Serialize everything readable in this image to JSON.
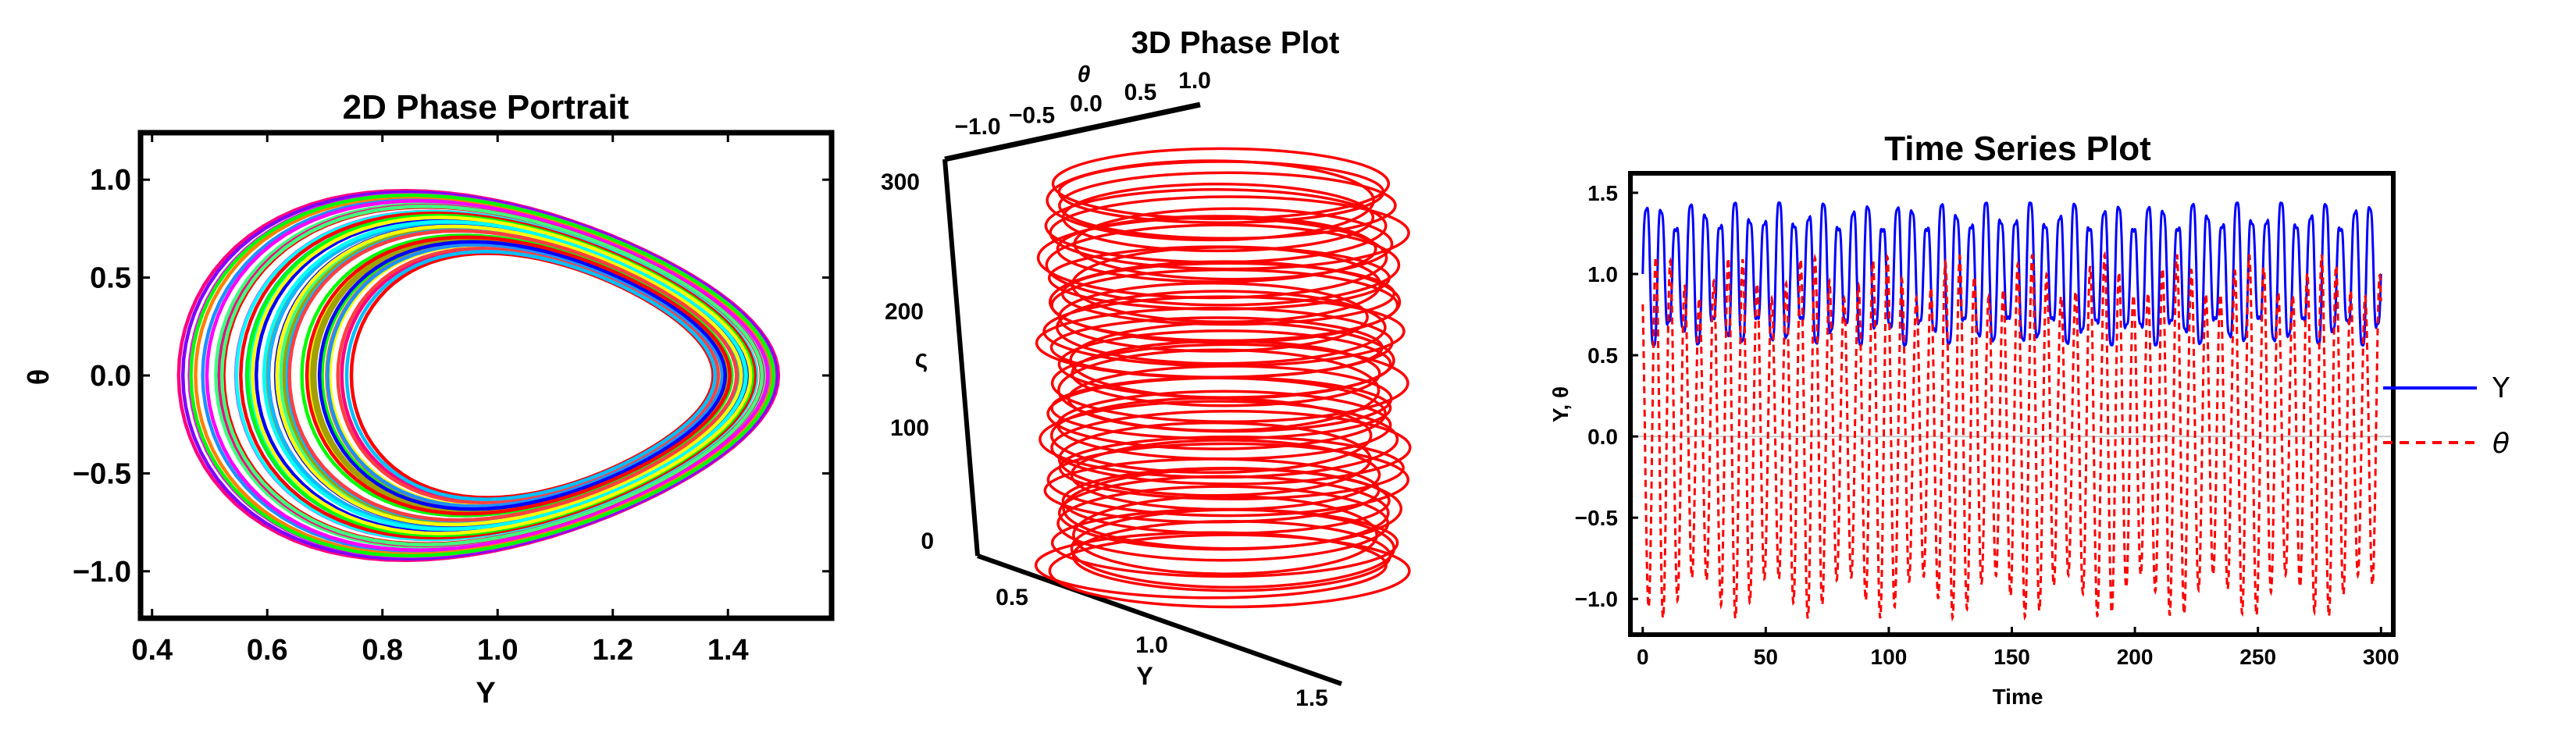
{
  "chart_data": [
    {
      "type": "line",
      "title": "2D Phase Portrait",
      "xlabel": "Y",
      "ylabel": "θ",
      "xlim": [
        0.38,
        1.58
      ],
      "ylim": [
        -1.24,
        1.24
      ],
      "xticks": [
        {
          "v": 0.4,
          "label": "0.4"
        },
        {
          "v": 0.6,
          "label": "0.6"
        },
        {
          "v": 0.8,
          "label": "0.8"
        },
        {
          "v": 1.0,
          "label": "1.0"
        },
        {
          "v": 1.2,
          "label": "1.2"
        },
        {
          "v": 1.4,
          "label": "1.4"
        }
      ],
      "yticks": [
        {
          "v": 1.0,
          "label": "1.0"
        },
        {
          "v": 0.5,
          "label": "0.5"
        },
        {
          "v": 0.0,
          "label": "0.0"
        },
        {
          "v": -0.5,
          "label": "−0.5"
        },
        {
          "v": -1.0,
          "label": "−1.0"
        }
      ],
      "orbit": {
        "y_min_range": [
          0.44,
          0.75
        ],
        "y_max_range": [
          1.36,
          1.49
        ],
        "theta_amplitude_range": [
          0.73,
          1.12
        ],
        "loops": 48
      },
      "series_colors": [
        "#ff00ff",
        "#00ffff",
        "#0000ff",
        "#ff0000",
        "#00ff00",
        "#ffff00",
        "#ff8000",
        "#8000ff",
        "#00c0ff",
        "#ff0080",
        "#40ff80",
        "#a0a000",
        "#1e90ff",
        "#ff4040"
      ]
    },
    {
      "type": "line3d",
      "title": "3D Phase Plot",
      "x_axis": {
        "name": "Y",
        "ticks": [
          "0.5",
          "1.0",
          "1.5"
        ]
      },
      "y_axis": {
        "name": "θ",
        "ticks": [
          "−1.0",
          "−0.5",
          "0.0",
          "0.5",
          "1.0"
        ]
      },
      "z_axis": {
        "name": "ς",
        "ticks": [
          "0",
          "100",
          "200",
          "300"
        ]
      },
      "zlim": [
        0,
        300
      ],
      "color": "#ff0000",
      "loops": 48
    },
    {
      "type": "line",
      "title": "Time Series Plot",
      "xlabel": "Time",
      "ylabel": "Y, θ",
      "xlim": [
        -5,
        305
      ],
      "ylim": [
        -1.22,
        1.62
      ],
      "xticks": [
        {
          "v": 0,
          "label": "0"
        },
        {
          "v": 50,
          "label": "50"
        },
        {
          "v": 100,
          "label": "100"
        },
        {
          "v": 150,
          "label": "150"
        },
        {
          "v": 200,
          "label": "200"
        },
        {
          "v": 250,
          "label": "250"
        },
        {
          "v": 300,
          "label": "300"
        }
      ],
      "yticks": [
        {
          "v": 1.5,
          "label": "1.5"
        },
        {
          "v": 1.0,
          "label": "1.0"
        },
        {
          "v": 0.5,
          "label": "0.5"
        },
        {
          "v": 0.0,
          "label": "0.0"
        },
        {
          "v": -0.5,
          "label": "−0.5"
        },
        {
          "v": -1.0,
          "label": "−1.0"
        }
      ],
      "series": [
        {
          "name": "Y",
          "color": "#0000ff",
          "style": "solid",
          "range": [
            0.45,
            1.55
          ]
        },
        {
          "name": "θ",
          "color": "#ff0000",
          "style": "dashed",
          "range": [
            -1.12,
            1.12
          ]
        }
      ],
      "legend_position": "right",
      "cycles": 50
    }
  ]
}
